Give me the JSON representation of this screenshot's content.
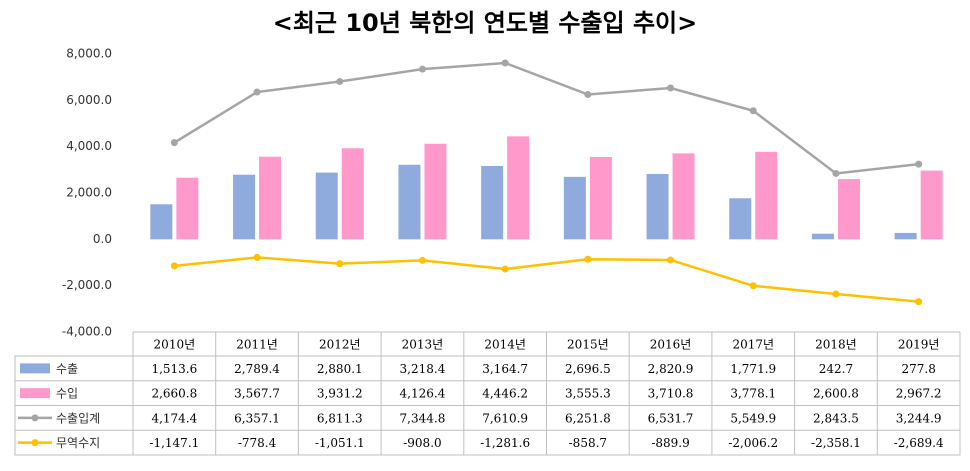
{
  "chart_data": {
    "type": "bar-line-table",
    "title": "<최근 10년 북한의 연도별 수출입 추이>",
    "categories": [
      "2010년",
      "2011년",
      "2012년",
      "2013년",
      "2014년",
      "2015년",
      "2016년",
      "2017년",
      "2018년",
      "2019년"
    ],
    "series": [
      {
        "name": "수출",
        "type": "bar",
        "color": "#8faadc",
        "values": [
          1513.6,
          2789.4,
          2880.1,
          3218.4,
          3164.7,
          2696.5,
          2820.9,
          1771.9,
          242.7,
          277.8
        ],
        "value_labels": [
          "1,513.6",
          "2,789.4",
          "2,880.1",
          "3,218.4",
          "3,164.7",
          "2,696.5",
          "2,820.9",
          "1,771.9",
          "242.7",
          "277.8"
        ]
      },
      {
        "name": "수입",
        "type": "bar",
        "color": "#ff99cc",
        "values": [
          2660.8,
          3567.7,
          3931.2,
          4126.4,
          4446.2,
          3555.3,
          3710.8,
          3778.1,
          2600.8,
          2967.2
        ],
        "value_labels": [
          "2,660.8",
          "3,567.7",
          "3,931.2",
          "4,126.4",
          "4,446.2",
          "3,555.3",
          "3,710.8",
          "3,778.1",
          "2,600.8",
          "2,967.2"
        ]
      },
      {
        "name": "수출입계",
        "type": "line",
        "color": "#a5a5a5",
        "values": [
          4174.4,
          6357.1,
          6811.3,
          7344.8,
          7610.9,
          6251.8,
          6531.7,
          5549.9,
          2843.5,
          3244.9
        ],
        "value_labels": [
          "4,174.4",
          "6,357.1",
          "6,811.3",
          "7,344.8",
          "7,610.9",
          "6,251.8",
          "6,531.7",
          "5,549.9",
          "2,843.5",
          "3,244.9"
        ]
      },
      {
        "name": "무역수지",
        "type": "line",
        "color": "#ffc000",
        "values": [
          -1147.1,
          -778.4,
          -1051.1,
          -908.0,
          -1281.6,
          -858.7,
          -889.9,
          -2006.2,
          -2358.1,
          -2689.4
        ],
        "value_labels": [
          "-1,147.1",
          "-778.4",
          "-1,051.1",
          "-908.0",
          "-1,281.6",
          "-858.7",
          "-889.9",
          "-2,006.2",
          "-2,358.1",
          "-2,689.4"
        ]
      }
    ],
    "ylim": [
      -4000,
      8000
    ],
    "yticks": [
      {
        "value": -4000,
        "label": "-4,000.0"
      },
      {
        "value": -2000,
        "label": "-2,000.0"
      },
      {
        "value": 0,
        "label": "0.0"
      },
      {
        "value": 2000,
        "label": "2,000.0"
      },
      {
        "value": 4000,
        "label": "4,000.0"
      },
      {
        "value": 6000,
        "label": "6,000.0"
      },
      {
        "value": 8000,
        "label": "8,000.0"
      }
    ],
    "grid": false
  }
}
